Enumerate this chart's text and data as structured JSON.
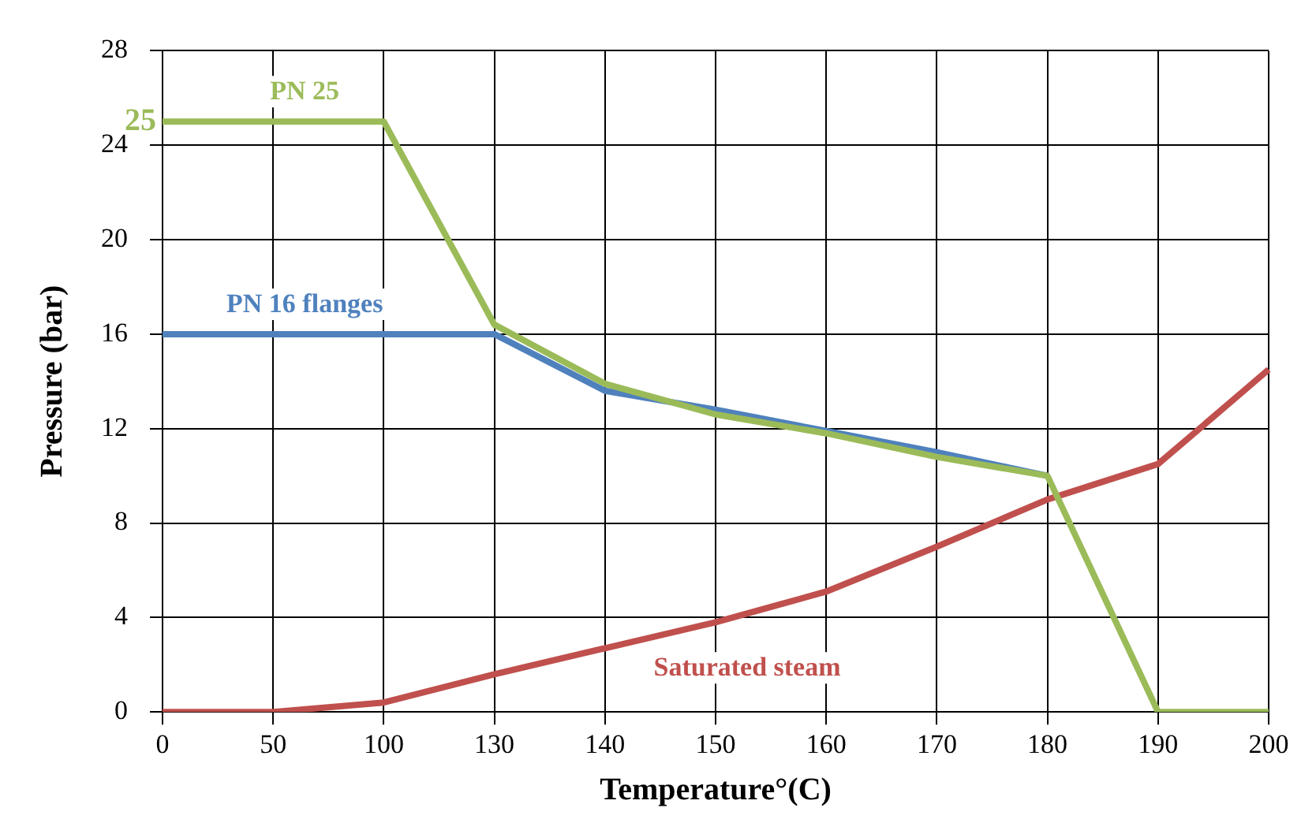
{
  "chart_data": {
    "type": "line",
    "xlabel": "Temperature°(C)",
    "ylabel": "Pressure (bar)",
    "categories": [
      "0",
      "50",
      "100",
      "130",
      "140",
      "150",
      "160",
      "170",
      "180",
      "190",
      "200"
    ],
    "series": [
      {
        "name": "PN 25",
        "color": "#9bbb59",
        "values": [
          25,
          25,
          25,
          16.4,
          13.9,
          12.6,
          11.8,
          10.8,
          10,
          0,
          0
        ]
      },
      {
        "name": "PN 16 flanges",
        "color": "#4f81bd",
        "values": [
          16,
          16,
          16,
          16,
          13.6,
          12.8,
          11.9,
          11,
          10,
          null,
          null
        ]
      },
      {
        "name": "Saturated steam",
        "color": "#c0504d",
        "values": [
          0,
          0,
          0.4,
          1.6,
          2.7,
          3.8,
          5.1,
          7,
          9,
          10.5,
          14.5
        ]
      }
    ],
    "annotations": [
      {
        "text": "25",
        "x": "0",
        "y": 25
      }
    ],
    "ylim": [
      0,
      28
    ],
    "yticks": [
      0,
      4,
      8,
      12,
      16,
      20,
      24,
      28
    ],
    "grid": true,
    "legend": false,
    "marker": "none"
  }
}
